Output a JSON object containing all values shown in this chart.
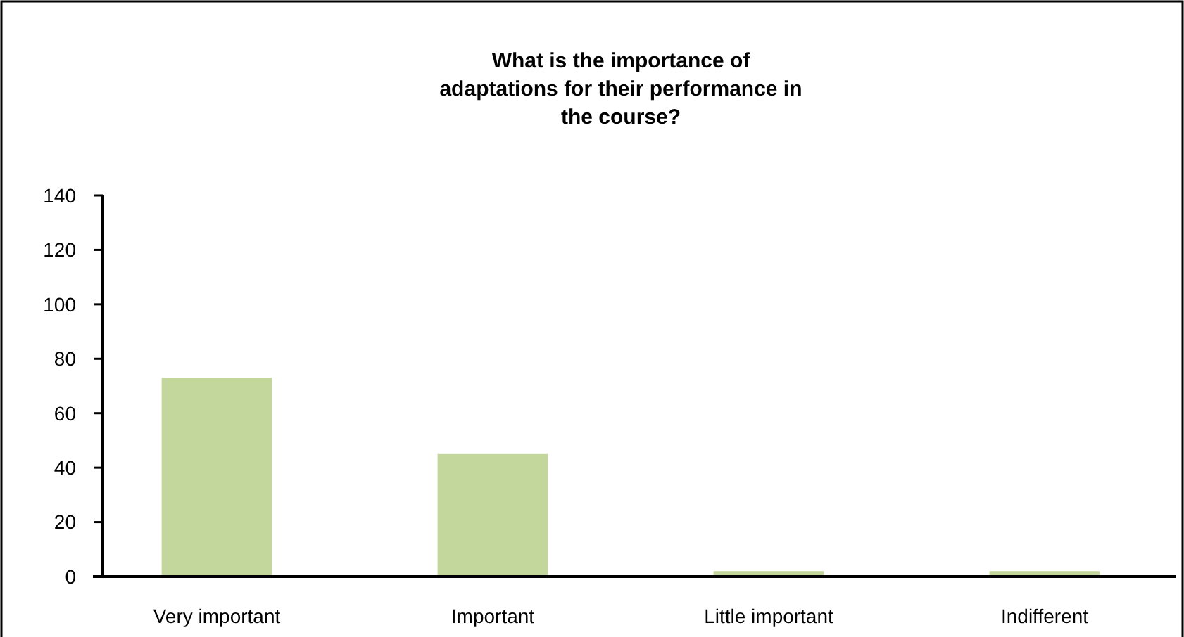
{
  "chart_data": {
    "type": "bar",
    "title": "What is the importance of\nadaptations for their performance in\nthe course?",
    "categories": [
      "Very important",
      "Important",
      "Little important",
      "Indifferent"
    ],
    "values": [
      73,
      45,
      2,
      2
    ],
    "color": "#c3d69b",
    "ylim": [
      0,
      140
    ],
    "yticks": [
      0,
      20,
      40,
      60,
      80,
      100,
      120,
      140
    ],
    "grid": false
  }
}
